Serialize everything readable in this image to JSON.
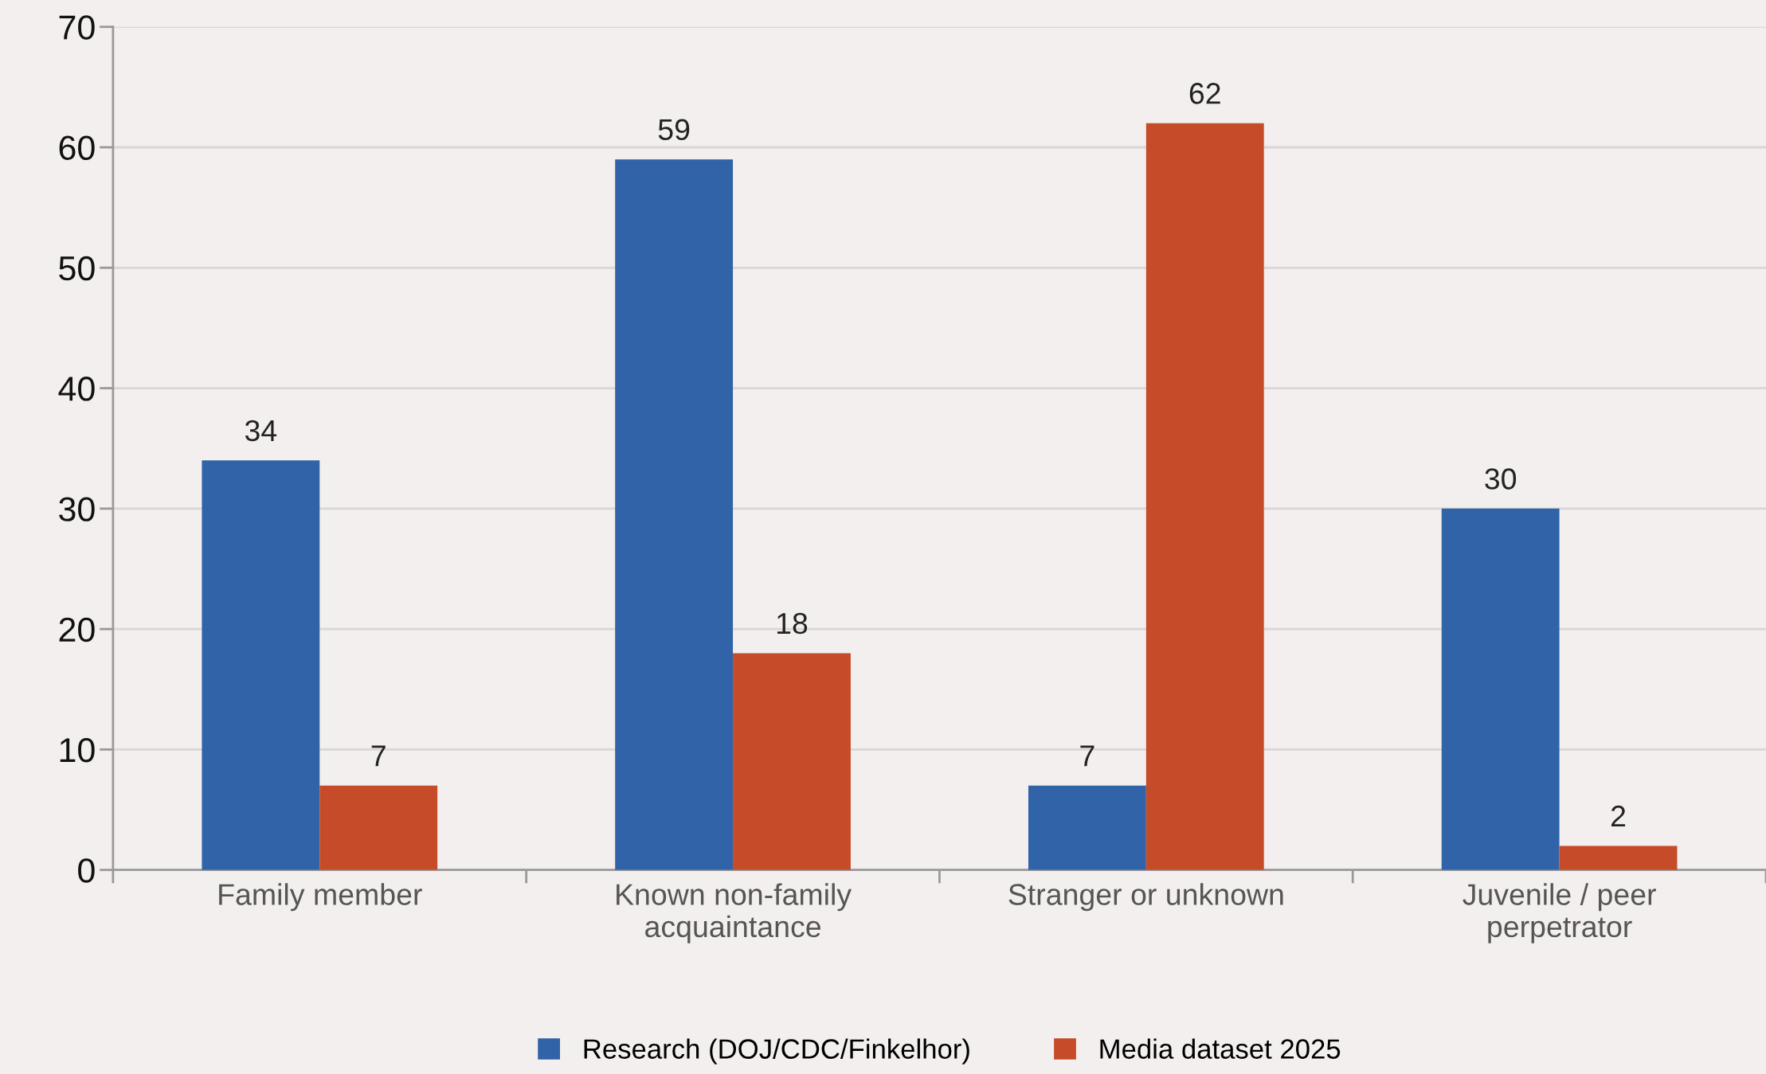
{
  "chart_data": {
    "type": "bar",
    "categories": [
      "Family member",
      "Known non-family\nacquaintance",
      "Stranger or unknown",
      "Juvenile / peer\nperpetrator"
    ],
    "series": [
      {
        "name": "Research (DOJ/CDC/Finkelhor)",
        "color": "#3163a8",
        "values": [
          34,
          59,
          7,
          30
        ]
      },
      {
        "name": "Media dataset 2025",
        "color": "#c64b28",
        "values": [
          7,
          18,
          62,
          2
        ]
      }
    ],
    "ylim": [
      0,
      70
    ],
    "yticks": [
      0,
      10,
      20,
      30,
      40,
      50,
      60,
      70
    ],
    "grid": "y",
    "legend": "bottom",
    "data_labels": true
  }
}
